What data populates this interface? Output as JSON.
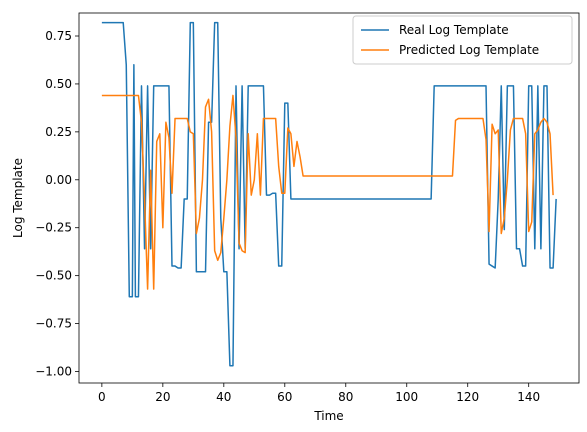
{
  "chart_data": {
    "type": "line",
    "title": "",
    "xlabel": "Time",
    "ylabel": "Log Template",
    "xlim": [
      -7.5,
      156.5
    ],
    "ylim": [
      -1.06,
      0.87
    ],
    "x_ticks": [
      0,
      20,
      40,
      60,
      80,
      100,
      120,
      140
    ],
    "y_ticks": [
      -1.0,
      -0.75,
      -0.5,
      -0.25,
      0.0,
      0.25,
      0.5,
      0.75
    ],
    "x_tick_labels": [
      "0",
      "20",
      "40",
      "60",
      "80",
      "100",
      "120",
      "140"
    ],
    "y_tick_labels": [
      "−1.00",
      "−0.75",
      "−0.50",
      "−0.25",
      "0.00",
      "0.25",
      "0.50",
      "0.75"
    ],
    "grid": false,
    "legend_position": "upper right",
    "series": [
      {
        "name": "Real Log Template",
        "color": "#1f77b4",
        "points": [
          [
            0,
            0.82
          ],
          [
            7,
            0.82
          ],
          [
            8,
            0.6
          ],
          [
            9,
            -0.61
          ],
          [
            10,
            -0.61
          ],
          [
            10.5,
            0.6
          ],
          [
            11,
            -0.61
          ],
          [
            12,
            -0.61
          ],
          [
            13,
            0.49
          ],
          [
            14,
            -0.36
          ],
          [
            15,
            0.49
          ],
          [
            16,
            -0.36
          ],
          [
            17,
            0.49
          ],
          [
            18,
            0.49
          ],
          [
            19,
            0.49
          ],
          [
            20,
            0.49
          ],
          [
            21,
            0.49
          ],
          [
            22,
            0.49
          ],
          [
            23,
            -0.45
          ],
          [
            24,
            -0.45
          ],
          [
            25,
            -0.46
          ],
          [
            26,
            -0.46
          ],
          [
            27,
            -0.1
          ],
          [
            28,
            -0.1
          ],
          [
            29,
            0.82
          ],
          [
            30,
            0.82
          ],
          [
            31,
            -0.48
          ],
          [
            32,
            -0.48
          ],
          [
            33,
            -0.48
          ],
          [
            34,
            -0.48
          ],
          [
            35,
            0.3
          ],
          [
            36,
            0.3
          ],
          [
            37,
            0.82
          ],
          [
            38,
            0.82
          ],
          [
            39,
            -0.2
          ],
          [
            40,
            -0.48
          ],
          [
            41,
            -0.48
          ],
          [
            42,
            -0.97
          ],
          [
            43,
            -0.97
          ],
          [
            44,
            0.49
          ],
          [
            45,
            -0.36
          ],
          [
            46,
            0.49
          ],
          [
            47,
            -0.36
          ],
          [
            48,
            0.49
          ],
          [
            49,
            0.49
          ],
          [
            50,
            0.49
          ],
          [
            51,
            0.49
          ],
          [
            52,
            0.49
          ],
          [
            53,
            0.49
          ],
          [
            54,
            -0.08
          ],
          [
            55,
            -0.08
          ],
          [
            56,
            -0.07
          ],
          [
            57,
            -0.07
          ],
          [
            58,
            -0.45
          ],
          [
            59,
            -0.45
          ],
          [
            60,
            0.4
          ],
          [
            61,
            0.4
          ],
          [
            62,
            -0.1
          ],
          [
            108,
            -0.1
          ],
          [
            109,
            0.49
          ],
          [
            125,
            0.49
          ],
          [
            126,
            0.49
          ],
          [
            127,
            -0.44
          ],
          [
            128,
            -0.45
          ],
          [
            129,
            -0.46
          ],
          [
            130,
            -0.1
          ],
          [
            131,
            0.49
          ],
          [
            132,
            -0.26
          ],
          [
            133,
            0.49
          ],
          [
            134,
            0.49
          ],
          [
            135,
            0.49
          ],
          [
            136,
            -0.36
          ],
          [
            137,
            -0.36
          ],
          [
            138,
            -0.45
          ],
          [
            139,
            -0.45
          ],
          [
            140,
            0.49
          ],
          [
            141,
            0.49
          ],
          [
            142,
            -0.36
          ],
          [
            143,
            0.49
          ],
          [
            144,
            -0.36
          ],
          [
            145,
            0.49
          ],
          [
            146,
            0.49
          ],
          [
            147,
            -0.46
          ],
          [
            148,
            -0.46
          ],
          [
            149,
            -0.1
          ]
        ]
      },
      {
        "name": "Predicted Log Template",
        "color": "#ff7f0e",
        "points": [
          [
            0,
            0.44
          ],
          [
            10,
            0.44
          ],
          [
            12,
            0.44
          ],
          [
            13,
            0.3
          ],
          [
            14,
            -0.1
          ],
          [
            15,
            -0.57
          ],
          [
            16,
            0.05
          ],
          [
            17,
            -0.57
          ],
          [
            18,
            0.2
          ],
          [
            19,
            0.24
          ],
          [
            20,
            -0.25
          ],
          [
            21,
            0.3
          ],
          [
            22,
            0.22
          ],
          [
            23,
            -0.07
          ],
          [
            24,
            0.32
          ],
          [
            25,
            0.32
          ],
          [
            26,
            0.32
          ],
          [
            27,
            0.32
          ],
          [
            28,
            0.32
          ],
          [
            29,
            0.25
          ],
          [
            30,
            0.24
          ],
          [
            31,
            -0.28
          ],
          [
            32,
            -0.2
          ],
          [
            33,
            0.0
          ],
          [
            34,
            0.38
          ],
          [
            35,
            0.42
          ],
          [
            36,
            0.25
          ],
          [
            37,
            -0.37
          ],
          [
            38,
            -0.42
          ],
          [
            39,
            -0.38
          ],
          [
            40,
            -0.2
          ],
          [
            41,
            0.0
          ],
          [
            42,
            0.28
          ],
          [
            43,
            0.44
          ],
          [
            44,
            0.22
          ],
          [
            45,
            -0.33
          ],
          [
            46,
            -0.37
          ],
          [
            47,
            -0.38
          ],
          [
            48,
            0.24
          ],
          [
            49,
            -0.08
          ],
          [
            50,
            0.0
          ],
          [
            51,
            0.24
          ],
          [
            52,
            -0.08
          ],
          [
            53,
            0.32
          ],
          [
            54,
            0.32
          ],
          [
            55,
            0.32
          ],
          [
            56,
            0.32
          ],
          [
            57,
            0.32
          ],
          [
            58,
            0.07
          ],
          [
            59,
            -0.07
          ],
          [
            60,
            -0.07
          ],
          [
            61,
            0.27
          ],
          [
            62,
            0.24
          ],
          [
            63,
            0.07
          ],
          [
            64,
            0.2
          ],
          [
            65,
            0.12
          ],
          [
            66,
            0.02
          ],
          [
            67,
            0.02
          ],
          [
            115,
            0.02
          ],
          [
            116,
            0.31
          ],
          [
            117,
            0.32
          ],
          [
            125,
            0.32
          ],
          [
            126,
            0.21
          ],
          [
            127,
            -0.27
          ],
          [
            128,
            0.29
          ],
          [
            129,
            0.24
          ],
          [
            130,
            0.26
          ],
          [
            131,
            -0.28
          ],
          [
            132,
            -0.2
          ],
          [
            133,
            0.0
          ],
          [
            134,
            0.26
          ],
          [
            135,
            0.32
          ],
          [
            136,
            0.32
          ],
          [
            137,
            0.32
          ],
          [
            138,
            0.32
          ],
          [
            139,
            0.24
          ],
          [
            140,
            -0.27
          ],
          [
            141,
            -0.22
          ],
          [
            142,
            0.24
          ],
          [
            143,
            0.26
          ],
          [
            144,
            0.3
          ],
          [
            145,
            0.32
          ],
          [
            146,
            0.3
          ],
          [
            147,
            0.24
          ],
          [
            148,
            -0.08
          ]
        ]
      }
    ]
  }
}
